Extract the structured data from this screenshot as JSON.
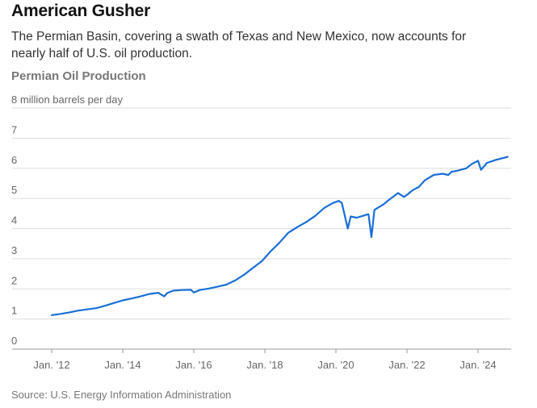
{
  "header": {
    "title": "American Gusher",
    "subtitle": "The Permian Basin, covering a swath of Texas and New Mexico, now accounts for nearly half of U.S. oil production."
  },
  "footer": {
    "source": "Source: U.S. Energy Information Administration"
  },
  "colors": {
    "line": "#1a6fd6",
    "grid": "#dddddd",
    "axis": "#999999"
  },
  "chart_data": {
    "type": "line",
    "title": "Permian Oil Production",
    "ylabel": "8 million barrels per day",
    "xlabel": "",
    "ylim": [
      0,
      8
    ],
    "xlim": [
      "2011-12",
      "2024-12"
    ],
    "grid": true,
    "y_ticks": [
      {
        "value": 8,
        "label": "8 million barrels per day"
      },
      {
        "value": 7,
        "label": "7"
      },
      {
        "value": 6,
        "label": "6"
      },
      {
        "value": 5,
        "label": "5"
      },
      {
        "value": 4,
        "label": "4"
      },
      {
        "value": 3,
        "label": "3"
      },
      {
        "value": 2,
        "label": "2"
      },
      {
        "value": 1,
        "label": "1"
      },
      {
        "value": 0,
        "label": "0"
      }
    ],
    "x_ticks": [
      {
        "date": "2012-01",
        "label": "Jan. '12"
      },
      {
        "date": "2014-01",
        "label": "Jan. '14"
      },
      {
        "date": "2016-01",
        "label": "Jan. '16"
      },
      {
        "date": "2018-01",
        "label": "Jan. '18"
      },
      {
        "date": "2020-01",
        "label": "Jan. '20"
      },
      {
        "date": "2022-01",
        "label": "Jan. '22"
      },
      {
        "date": "2024-01",
        "label": "Jan. '24"
      }
    ],
    "series": [
      {
        "x": [
          "2012-01",
          "2012-04",
          "2012-07",
          "2012-10",
          "2013-01",
          "2013-04",
          "2013-07",
          "2013-10",
          "2014-01",
          "2014-04",
          "2014-07",
          "2014-10",
          "2015-01",
          "2015-03",
          "2015-04",
          "2015-06",
          "2015-09",
          "2015-12",
          "2016-01",
          "2016-03",
          "2016-06",
          "2016-09",
          "2016-12",
          "2017-03",
          "2017-06",
          "2017-09",
          "2017-12",
          "2018-03",
          "2018-06",
          "2018-09",
          "2018-12",
          "2019-03",
          "2019-06",
          "2019-09",
          "2019-12",
          "2020-02",
          "2020-03",
          "2020-05",
          "2020-06",
          "2020-08",
          "2020-10",
          "2020-12",
          "2021-01",
          "2021-02",
          "2021-03",
          "2021-05",
          "2021-07",
          "2021-10",
          "2021-12",
          "2022-01",
          "2022-03",
          "2022-05",
          "2022-07",
          "2022-10",
          "2023-01",
          "2023-03",
          "2023-04",
          "2023-06",
          "2023-09",
          "2023-11",
          "2024-01",
          "2024-02",
          "2024-04",
          "2024-07",
          "2024-09",
          "2024-11"
        ],
        "y": [
          1.13,
          1.17,
          1.22,
          1.28,
          1.32,
          1.36,
          1.44,
          1.53,
          1.62,
          1.68,
          1.75,
          1.83,
          1.87,
          1.75,
          1.86,
          1.94,
          1.96,
          1.97,
          1.88,
          1.96,
          2.01,
          2.07,
          2.14,
          2.28,
          2.47,
          2.7,
          2.92,
          3.25,
          3.54,
          3.87,
          4.05,
          4.22,
          4.42,
          4.68,
          4.85,
          4.92,
          4.85,
          4.0,
          4.4,
          4.36,
          4.42,
          4.48,
          3.72,
          4.62,
          4.68,
          4.8,
          4.96,
          5.18,
          5.05,
          5.12,
          5.28,
          5.38,
          5.6,
          5.78,
          5.82,
          5.78,
          5.88,
          5.92,
          6.0,
          6.15,
          6.25,
          5.95,
          6.18,
          6.28,
          6.33,
          6.38
        ]
      }
    ]
  }
}
